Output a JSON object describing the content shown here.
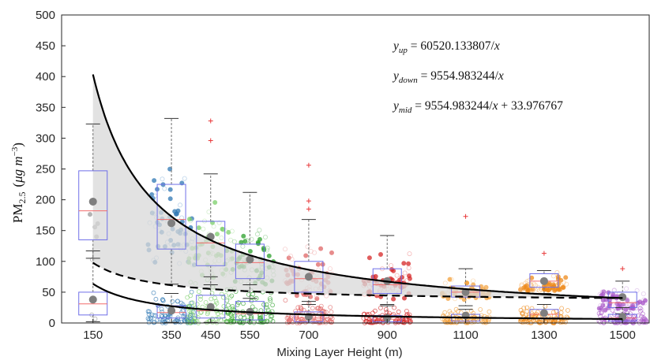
{
  "chart_data": {
    "type": "box",
    "xlabel": "Mixing Layer Height (m)",
    "ylabel_main": "PM",
    "ylabel_sub": "2.5",
    "ylabel_unit_pre": "(",
    "ylabel_unit_mu": "μg m",
    "ylabel_unit_sup": "−3",
    "ylabel_unit_post": ")",
    "xlim": [
      70,
      1570
    ],
    "ylim": [
      0,
      500
    ],
    "yticks": [
      0,
      50,
      100,
      150,
      200,
      250,
      300,
      350,
      400,
      450,
      500
    ],
    "xticks": [
      150,
      350,
      450,
      550,
      700,
      900,
      1100,
      1300,
      1500
    ],
    "grid": false,
    "equations": [
      {
        "lhs": "y",
        "sub": "up",
        "rhs": " = 60520.133807/",
        "var": "x"
      },
      {
        "lhs": "y",
        "sub": "down",
        "rhs": " = 9554.983244/",
        "var": "x"
      },
      {
        "lhs": "y",
        "sub": "mid",
        "rhs": " = 9554.983244/",
        "var": "x",
        "tail": " + 33.976767"
      }
    ],
    "curves": {
      "up": {
        "a": 60520.133807,
        "b": 0
      },
      "down": {
        "a": 9554.983244,
        "b": 0
      },
      "mid": {
        "a": 9554.983244,
        "b": 33.976767
      }
    },
    "box_groups": [
      {
        "x": 150,
        "upper": {
          "q1": 135,
          "median": 182,
          "q3": 247,
          "wlo": 105,
          "whi": 323,
          "mean": 197,
          "outliers": []
        },
        "lower": {
          "q1": 13,
          "median": 31,
          "q3": 50,
          "wlo": 2,
          "whi": 117,
          "mean": 38,
          "outliers": []
        }
      },
      {
        "x": 350,
        "upper": {
          "q1": 120,
          "median": 168,
          "q3": 225,
          "wlo": 63,
          "whi": 332,
          "mean": 162,
          "outliers": []
        },
        "lower": {
          "q1": 8,
          "median": 17,
          "q3": 28,
          "wlo": 1,
          "whi": 48,
          "mean": 20,
          "outliers": []
        }
      },
      {
        "x": 450,
        "upper": {
          "q1": 93,
          "median": 130,
          "q3": 165,
          "wlo": 62,
          "whi": 242,
          "mean": 140,
          "outliers": [
            296,
            328
          ]
        },
        "lower": {
          "q1": 8,
          "median": 20,
          "q3": 45,
          "wlo": 1,
          "whi": 75,
          "mean": 26,
          "outliers": []
        }
      },
      {
        "x": 550,
        "upper": {
          "q1": 72,
          "median": 98,
          "q3": 128,
          "wlo": 40,
          "whi": 212,
          "mean": 103,
          "outliers": []
        },
        "lower": {
          "q1": 5,
          "median": 15,
          "q3": 35,
          "wlo": 0,
          "whi": 62,
          "mean": 18,
          "outliers": []
        }
      },
      {
        "x": 700,
        "upper": {
          "q1": 50,
          "median": 72,
          "q3": 100,
          "wlo": 30,
          "whi": 168,
          "mean": 75,
          "outliers": [
            185,
            198,
            256
          ]
        },
        "lower": {
          "q1": 2,
          "median": 8,
          "q3": 18,
          "wlo": 0,
          "whi": 35,
          "mean": 10,
          "outliers": []
        }
      },
      {
        "x": 900,
        "upper": {
          "q1": 48,
          "median": 62,
          "q3": 88,
          "wlo": 30,
          "whi": 142,
          "mean": 68,
          "outliers": []
        },
        "lower": {
          "q1": 2,
          "median": 6,
          "q3": 12,
          "wlo": 0,
          "whi": 28,
          "mean": 8,
          "outliers": []
        }
      },
      {
        "x": 1100,
        "upper": {
          "q1": 42,
          "median": 50,
          "q3": 60,
          "wlo": 28,
          "whi": 88,
          "mean": 50,
          "outliers": [
            173
          ]
        },
        "lower": {
          "q1": 3,
          "median": 9,
          "q3": 14,
          "wlo": 0,
          "whi": 22,
          "mean": 12,
          "outliers": []
        }
      },
      {
        "x": 1300,
        "upper": {
          "q1": 58,
          "median": 68,
          "q3": 80,
          "wlo": 48,
          "whi": 85,
          "mean": 68,
          "outliers": [
            113
          ]
        },
        "lower": {
          "q1": 8,
          "median": 14,
          "q3": 22,
          "wlo": 0,
          "whi": 30,
          "mean": 16,
          "outliers": []
        }
      },
      {
        "x": 1500,
        "upper": {
          "q1": 25,
          "median": 33,
          "q3": 50,
          "wlo": 15,
          "whi": 68,
          "mean": 42,
          "outliers": [
            88
          ]
        },
        "lower": {
          "q1": 3,
          "median": 8,
          "q3": 14,
          "wlo": 0,
          "whi": 25,
          "mean": 10,
          "outliers": []
        }
      }
    ],
    "colors": {
      "up_curve": "#000000",
      "fill_band": "#d8d8d8",
      "box_edge": "#6f6fe8",
      "median": "#f26d6d",
      "whisker": "#6e6e6e",
      "mean_marker": "#7f7f7f",
      "outlier": "#e8393a",
      "scatter": [
        "#8c8c8c",
        "#3a7fbd",
        "#6cbf5a",
        "#2ca02c",
        "#e57272",
        "#d62728",
        "#f5a74d",
        "#ee8a1b",
        "#b45ccf"
      ]
    }
  }
}
